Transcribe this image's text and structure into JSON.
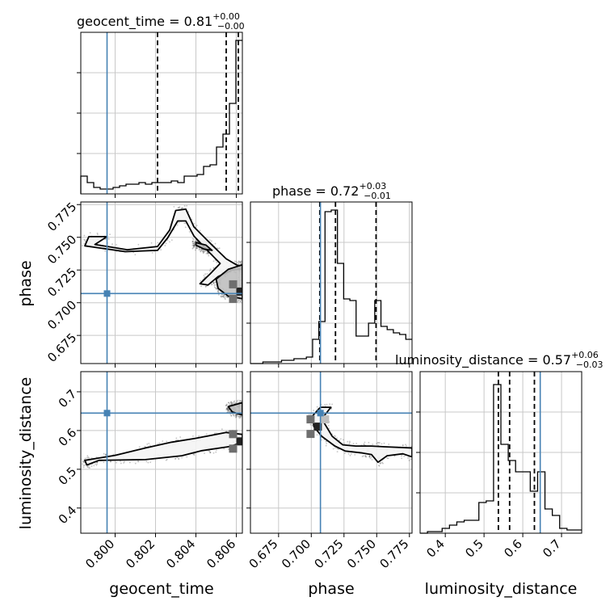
{
  "chart_data": {
    "type": "corner",
    "colors": {
      "truth": "#4682b4",
      "line": "#000000",
      "grid": "#c8c8c8",
      "samples": "#555555",
      "fill1": "#f4f4f4",
      "fill2": "#bfbfbf",
      "fill3": "#6e6e6e",
      "fill4": "#222222"
    },
    "truths": {
      "geocent_time": 0.7996,
      "phase": 0.707,
      "luminosity_distance": 0.645
    },
    "parameters": [
      {
        "name": "geocent_time",
        "xlabel": "geocent_time",
        "title_main": "geocent_time = 0.81",
        "title_plus": "+0.00",
        "title_minus": "−0.00",
        "range": [
          0.7983,
          0.8063
        ],
        "ticks": [
          0.8,
          0.802,
          0.804,
          0.806
        ],
        "tick_labels": [
          "0.800",
          "0.802",
          "0.804",
          "0.806"
        ],
        "quantiles": [
          0.8021,
          0.8055,
          0.8061
        ],
        "hist": [
          0.11,
          0.07,
          0.04,
          0.03,
          0.03,
          0.04,
          0.05,
          0.06,
          0.06,
          0.07,
          0.06,
          0.07,
          0.07,
          0.07,
          0.08,
          0.07,
          0.11,
          0.11,
          0.12,
          0.17,
          0.18,
          0.29,
          0.37,
          0.56,
          0.95
        ]
      },
      {
        "name": "phase",
        "xlabel": "phase",
        "ylabel": "phase",
        "title_main": "phase = 0.72",
        "title_plus": "+0.03",
        "title_minus": "−0.01",
        "range": [
          0.6535,
          0.777
        ],
        "ticks": [
          0.675,
          0.7,
          0.725,
          0.75,
          0.775
        ],
        "tick_labels": [
          "0.675",
          "0.700",
          "0.725",
          "0.750",
          "0.775"
        ],
        "quantiles": [
          0.7065,
          0.7185,
          0.7495
        ],
        "hist": [
          0.0,
          0.0,
          0.01,
          0.01,
          0.01,
          0.02,
          0.02,
          0.03,
          0.03,
          0.04,
          0.15,
          0.26,
          0.94,
          0.95,
          0.62,
          0.4,
          0.39,
          0.17,
          0.17,
          0.25,
          0.39,
          0.23,
          0.21,
          0.19,
          0.18,
          0.15
        ]
      },
      {
        "name": "luminosity_distance",
        "xlabel": "luminosity_distance",
        "ylabel": "luminosity_distance",
        "title_main": "luminosity_distance = 0.57",
        "title_plus": "+0.06",
        "title_minus": "−0.03",
        "range": [
          0.335,
          0.752
        ],
        "ticks": [
          0.4,
          0.5,
          0.6,
          0.7
        ],
        "tick_labels": [
          "0.4",
          "0.5",
          "0.6",
          "0.7"
        ],
        "quantiles": [
          0.537,
          0.566,
          0.63
        ],
        "hist": [
          0.0,
          0.01,
          0.01,
          0.03,
          0.05,
          0.07,
          0.08,
          0.08,
          0.19,
          0.2,
          0.92,
          0.55,
          0.45,
          0.38,
          0.38,
          0.26,
          0.38,
          0.15,
          0.11,
          0.03,
          0.02,
          0.02
        ]
      }
    ],
    "contours": [
      {
        "x_param": "geocent_time",
        "y_param": "phase",
        "levels": [
          [
            [
              0.7996,
              0.7505
            ],
            [
              0.799,
              0.7445
            ],
            [
              0.8006,
              0.7405
            ],
            [
              0.8021,
              0.743
            ],
            [
              0.8027,
              0.7555
            ],
            [
              0.803,
              0.7705
            ],
            [
              0.8035,
              0.7715
            ],
            [
              0.8039,
              0.758
            ],
            [
              0.8048,
              0.744
            ],
            [
              0.8055,
              0.7335
            ],
            [
              0.806,
              0.729
            ],
            [
              0.8063,
              0.727
            ],
            [
              0.8063,
              0.726
            ],
            [
              0.8058,
              0.725
            ],
            [
              0.8051,
              0.72
            ],
            [
              0.8046,
              0.7135
            ],
            [
              0.8042,
              0.7145
            ],
            [
              0.8047,
              0.722
            ],
            [
              0.8052,
              0.73
            ],
            [
              0.8046,
              0.7395
            ],
            [
              0.8039,
              0.751
            ],
            [
              0.8035,
              0.7625
            ],
            [
              0.8031,
              0.7625
            ],
            [
              0.8026,
              0.7495
            ],
            [
              0.8021,
              0.74
            ],
            [
              0.8005,
              0.739
            ],
            [
              0.7985,
              0.7435
            ],
            [
              0.7987,
              0.7505
            ]
          ],
          [
            [
              0.805,
              0.718
            ],
            [
              0.8056,
              0.7255
            ],
            [
              0.8063,
              0.729
            ],
            [
              0.8063,
              0.703
            ],
            [
              0.8056,
              0.705
            ],
            [
              0.8051,
              0.711
            ]
          ],
          [
            [
              0.804,
              0.746
            ],
            [
              0.8045,
              0.744
            ],
            [
              0.8048,
              0.74
            ],
            [
              0.8044,
              0.741
            ],
            [
              0.804,
              0.744
            ]
          ]
        ],
        "peak": [
          0.8062,
          0.7085
        ]
      },
      {
        "x_param": "geocent_time",
        "y_param": "luminosity_distance",
        "levels": [
          [
            [
              0.7986,
              0.511
            ],
            [
              0.7992,
              0.523
            ],
            [
              0.8015,
              0.525
            ],
            [
              0.8033,
              0.535
            ],
            [
              0.8043,
              0.548
            ],
            [
              0.8057,
              0.559
            ],
            [
              0.8063,
              0.57
            ],
            [
              0.8063,
              0.59
            ],
            [
              0.8055,
              0.595
            ],
            [
              0.804,
              0.58
            ],
            [
              0.8028,
              0.57
            ],
            [
              0.8015,
              0.555
            ],
            [
              0.8,
              0.536
            ],
            [
              0.7985,
              0.523
            ]
          ],
          [
            [
              0.8056,
              0.662
            ],
            [
              0.8063,
              0.672
            ],
            [
              0.8063,
              0.64
            ],
            [
              0.8058,
              0.648
            ]
          ]
        ],
        "peak": [
          0.8062,
          0.572
        ]
      },
      {
        "x_param": "phase",
        "y_param": "luminosity_distance",
        "levels": [
          [
            [
              0.701,
              0.638
            ],
            [
              0.707,
              0.66
            ],
            [
              0.715,
              0.66
            ],
            [
              0.708,
              0.63
            ],
            [
              0.716,
              0.585
            ],
            [
              0.724,
              0.563
            ],
            [
              0.734,
              0.56
            ],
            [
              0.746,
              0.56
            ],
            [
              0.756,
              0.558
            ],
            [
              0.777,
              0.555
            ],
            [
              0.777,
              0.532
            ],
            [
              0.77,
              0.54
            ],
            [
              0.758,
              0.535
            ],
            [
              0.751,
              0.518
            ],
            [
              0.746,
              0.538
            ],
            [
              0.739,
              0.542
            ],
            [
              0.726,
              0.547
            ],
            [
              0.718,
              0.56
            ],
            [
              0.708,
              0.585
            ],
            [
              0.702,
              0.61
            ]
          ]
        ],
        "peak": [
          0.705,
          0.61
        ]
      }
    ]
  }
}
